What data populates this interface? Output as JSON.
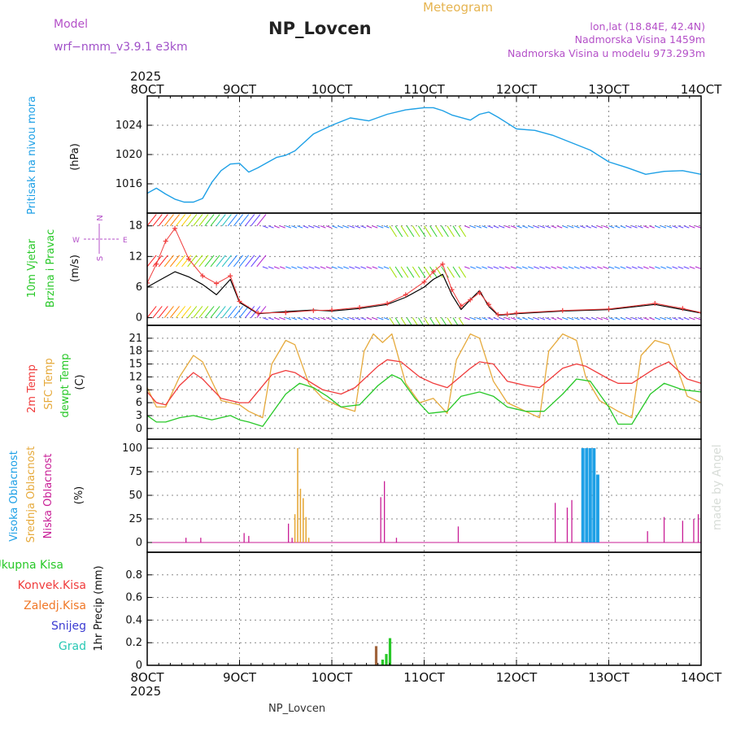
{
  "header": {
    "model_label": "Model",
    "model_name": "wrf−nmm_v3.9.1  e3km",
    "title": "NP_Lovcen",
    "meteogram_label": "Meteogram",
    "lonlat": "lon,lat (18.84E, 42.4N)",
    "elevation": "Nadmorska Visina 1459m",
    "model_elevation": "Nadmorska Visina u modelu 973.293m",
    "year_top": "2025",
    "year_bottom": "2025",
    "footer_station": "NP_Lovcen",
    "watermark": "made by Angel"
  },
  "colors": {
    "pressure": "#1ea0e6",
    "temp2m": "#f03c3c",
    "sfc_temp": "#e6aa3c",
    "dewpoint": "#28c828",
    "high_cloud": "#1ea0e6",
    "mid_cloud": "#e6aa3c",
    "low_cloud": "#c81e96",
    "ukupna": "#28c828",
    "konvek": "#f03c3c",
    "zaledj": "#f07828",
    "snijeg": "#3c3cd2",
    "grad": "#28c8b4",
    "precip_brown": "#a0643c",
    "grid": "#888888"
  },
  "chart_data": [
    {
      "panel": "pressure",
      "type": "line",
      "ylabel": "(hPa)",
      "side_label": "Pritisak na nivou mora",
      "x_ticks": [
        "8OCT",
        "9OCT",
        "10OCT",
        "11OCT",
        "12OCT",
        "13OCT",
        "14OCT"
      ],
      "x_range": [
        8,
        14
      ],
      "y_ticks": [
        1016,
        1020,
        1024
      ],
      "ylim": [
        1012,
        1028
      ],
      "series": [
        {
          "name": "Pritisak",
          "x": [
            8.0,
            8.1,
            8.2,
            8.3,
            8.4,
            8.5,
            8.6,
            8.7,
            8.8,
            8.9,
            9.0,
            9.1,
            9.2,
            9.3,
            9.4,
            9.5,
            9.6,
            9.8,
            10.0,
            10.2,
            10.4,
            10.6,
            10.8,
            11.0,
            11.1,
            11.2,
            11.3,
            11.5,
            11.6,
            11.7,
            11.8,
            11.9,
            12.0,
            12.2,
            12.4,
            12.6,
            12.8,
            13.0,
            13.2,
            13.4,
            13.6,
            13.8,
            14.0
          ],
          "values": [
            1014.7,
            1015.4,
            1014.6,
            1013.9,
            1013.5,
            1013.5,
            1014.0,
            1016.2,
            1017.8,
            1018.7,
            1018.8,
            1017.6,
            1018.2,
            1018.9,
            1019.6,
            1019.9,
            1020.5,
            1022.8,
            1024.0,
            1025.0,
            1024.6,
            1025.5,
            1026.1,
            1026.4,
            1026.4,
            1026.0,
            1025.4,
            1024.7,
            1025.5,
            1025.8,
            1025.1,
            1024.3,
            1023.5,
            1023.3,
            1022.6,
            1021.6,
            1020.6,
            1019.0,
            1018.2,
            1017.3,
            1017.7,
            1017.8,
            1017.3
          ]
        }
      ]
    },
    {
      "panel": "wind",
      "type": "line",
      "ylabel": "(m/s)",
      "side_label_1": "10m Vjetar",
      "side_label_2": "Brzina i Pravac",
      "compass_n": "N",
      "compass_s": "S",
      "compass_e": "E",
      "compass_w": "W",
      "x_range": [
        8,
        14
      ],
      "y_ticks": [
        0,
        6,
        12,
        18
      ],
      "ylim": [
        -1.5,
        20.5
      ],
      "barb_rows": [
        0,
        10,
        18
      ],
      "series": [
        {
          "name": "Brzina",
          "x": [
            8.0,
            8.15,
            8.3,
            8.45,
            8.6,
            8.75,
            8.9,
            9.0,
            9.2,
            9.5,
            9.8,
            10.0,
            10.3,
            10.6,
            10.8,
            11.0,
            11.1,
            11.2,
            11.3,
            11.4,
            11.5,
            11.6,
            11.7,
            11.8,
            11.9,
            12.0,
            12.5,
            13.0,
            13.5,
            13.8,
            14.0
          ],
          "values": [
            6.0,
            7.5,
            9.0,
            8.0,
            6.5,
            4.5,
            7.5,
            3.0,
            0.8,
            1.2,
            1.5,
            1.3,
            1.8,
            2.6,
            4.0,
            6.0,
            7.5,
            8.5,
            4.5,
            1.6,
            3.5,
            5.3,
            2.2,
            0.5,
            0.6,
            0.8,
            1.3,
            1.6,
            2.6,
            1.6,
            0.9
          ]
        },
        {
          "name": "Udari",
          "x": [
            8.0,
            8.1,
            8.2,
            8.3,
            8.45,
            8.6,
            8.75,
            8.9,
            9.0,
            9.2,
            9.5,
            9.8,
            10.0,
            10.3,
            10.6,
            10.8,
            11.0,
            11.1,
            11.2,
            11.3,
            11.4,
            11.5,
            11.6,
            11.7,
            11.8,
            11.9,
            12.0,
            12.5,
            13.0,
            13.5,
            13.8,
            14.0
          ],
          "values": [
            6.8,
            10.5,
            15.0,
            17.5,
            11.5,
            8.2,
            6.7,
            8.2,
            3.2,
            0.9,
            1.0,
            1.4,
            1.5,
            2.0,
            2.8,
            4.5,
            7.0,
            9.0,
            10.5,
            5.5,
            2.3,
            3.5,
            4.9,
            2.6,
            0.6,
            0.7,
            0.9,
            1.4,
            1.7,
            2.8,
            1.8,
            1.0
          ]
        }
      ]
    },
    {
      "panel": "temperature",
      "type": "line",
      "ylabel": "(C)",
      "side_label_1": "2m Temp",
      "side_label_2": "SFC Temp",
      "side_label_3": "dewpt Temp",
      "x_range": [
        8,
        14
      ],
      "y_ticks": [
        0,
        3,
        6,
        9,
        12,
        15,
        18,
        21
      ],
      "ylim": [
        -2.5,
        24
      ],
      "series": [
        {
          "name": "2m Temp",
          "x": [
            8.0,
            8.1,
            8.2,
            8.35,
            8.5,
            8.6,
            8.8,
            9.0,
            9.1,
            9.35,
            9.5,
            9.6,
            9.75,
            9.9,
            10.1,
            10.25,
            10.5,
            10.6,
            10.75,
            10.95,
            11.1,
            11.25,
            11.5,
            11.6,
            11.75,
            11.9,
            12.1,
            12.25,
            12.5,
            12.65,
            12.75,
            13.0,
            13.1,
            13.25,
            13.5,
            13.65,
            13.85,
            14.0
          ],
          "values": [
            8.5,
            6.0,
            5.5,
            10.0,
            13.0,
            11.5,
            7.0,
            6.0,
            6.0,
            12.5,
            13.5,
            13.0,
            11.0,
            9.0,
            8.0,
            9.5,
            14.5,
            16.0,
            15.5,
            12.0,
            10.5,
            9.5,
            14.0,
            15.5,
            15.0,
            11.0,
            10.0,
            9.5,
            14.0,
            15.0,
            14.5,
            11.5,
            10.5,
            10.5,
            14.0,
            15.5,
            11.5,
            10.5
          ]
        },
        {
          "name": "SFC Temp",
          "x": [
            8.0,
            8.1,
            8.2,
            8.35,
            8.5,
            8.6,
            8.8,
            9.0,
            9.1,
            9.25,
            9.35,
            9.5,
            9.6,
            9.75,
            9.9,
            10.1,
            10.25,
            10.35,
            10.45,
            10.55,
            10.65,
            10.8,
            10.95,
            11.1,
            11.25,
            11.35,
            11.5,
            11.6,
            11.75,
            11.9,
            12.1,
            12.25,
            12.35,
            12.5,
            12.65,
            12.75,
            12.9,
            13.1,
            13.25,
            13.35,
            13.5,
            13.65,
            13.85,
            14.0
          ],
          "values": [
            9.5,
            5.0,
            5.0,
            12.0,
            17.0,
            15.5,
            6.5,
            5.5,
            4.0,
            2.5,
            15.0,
            20.5,
            19.5,
            10.5,
            7.0,
            5.0,
            4.0,
            18.0,
            22.0,
            20.0,
            22.0,
            10.5,
            6.0,
            7.0,
            3.5,
            16.0,
            22.0,
            21.0,
            11.0,
            6.0,
            4.0,
            2.5,
            18.0,
            22.0,
            20.5,
            12.0,
            6.5,
            4.0,
            2.5,
            17.0,
            20.5,
            19.5,
            7.5,
            6.0
          ]
        },
        {
          "name": "dewpt Temp",
          "x": [
            8.0,
            8.1,
            8.2,
            8.35,
            8.5,
            8.7,
            8.9,
            9.0,
            9.1,
            9.25,
            9.5,
            9.65,
            9.8,
            9.95,
            10.1,
            10.3,
            10.5,
            10.65,
            10.75,
            10.9,
            11.05,
            11.25,
            11.4,
            11.6,
            11.75,
            11.9,
            12.1,
            12.3,
            12.5,
            12.65,
            12.8,
            13.0,
            13.1,
            13.25,
            13.45,
            13.6,
            13.8,
            14.0
          ],
          "values": [
            3.0,
            1.5,
            1.5,
            2.5,
            3.0,
            2.0,
            3.0,
            2.0,
            1.5,
            0.5,
            8.0,
            10.5,
            9.5,
            7.5,
            5.0,
            5.5,
            10.0,
            12.5,
            11.5,
            7.0,
            3.5,
            4.0,
            7.5,
            8.5,
            7.5,
            5.0,
            4.0,
            4.0,
            8.0,
            11.5,
            11.0,
            5.0,
            1.0,
            1.0,
            8.0,
            10.5,
            9.0,
            8.5
          ]
        }
      ]
    },
    {
      "panel": "clouds",
      "type": "bar",
      "ylabel": "(%)",
      "side_label_1": "Visoka Oblacnost",
      "side_label_2": "Srednja Oblacnost",
      "side_label_3": "Niska Oblacnost",
      "x_range": [
        8,
        14
      ],
      "y_ticks": [
        0,
        25,
        50,
        75,
        100
      ],
      "ylim": [
        0,
        100
      ],
      "series": [
        {
          "name": "Visoka Oblacnost",
          "x": [
            12.72,
            12.76,
            12.8,
            12.84,
            12.88
          ],
          "values": [
            100,
            100,
            100,
            100,
            72
          ]
        },
        {
          "name": "Srednja Oblacnost",
          "x": [
            9.6,
            9.63,
            9.66,
            9.69,
            9.72,
            9.75
          ],
          "values": [
            30,
            100,
            57,
            47,
            27,
            5
          ]
        },
        {
          "name": "Niska Oblacnost",
          "x": [
            8.42,
            8.58,
            9.05,
            9.1,
            9.53,
            9.57,
            10.53,
            10.57,
            10.7,
            11.37,
            12.42,
            12.55,
            12.6,
            13.42,
            13.6,
            13.8,
            13.92,
            13.97
          ],
          "values": [
            5,
            5,
            10,
            7,
            20,
            5,
            48,
            65,
            5,
            17,
            42,
            37,
            45,
            12,
            27,
            23,
            25,
            30
          ]
        }
      ]
    },
    {
      "panel": "precip",
      "type": "bar",
      "ylabel": "1hr Precip (mm)",
      "legend": [
        "Ukupna Kisa",
        "Konvek.Kisa",
        "Zaledj.Kisa",
        "Snijeg",
        "Grad"
      ],
      "x_ticks": [
        "8OCT",
        "9OCT",
        "10OCT",
        "11OCT",
        "12OCT",
        "13OCT",
        "14OCT"
      ],
      "x_range": [
        8,
        14
      ],
      "y_ticks": [
        0,
        0.2,
        0.4,
        0.6,
        0.8
      ],
      "y_tick_labels": [
        "0",
        "0.2",
        "0.4",
        "0.6",
        "0.8"
      ],
      "ylim": [
        0,
        1.0
      ],
      "series": [
        {
          "name": "Zaledj.Kisa",
          "x": [
            10.48
          ],
          "values": [
            0.17
          ]
        },
        {
          "name": "Ukupna Kisa",
          "x": [
            10.55,
            10.59,
            10.63
          ],
          "values": [
            0.05,
            0.1,
            0.24
          ]
        }
      ]
    }
  ]
}
